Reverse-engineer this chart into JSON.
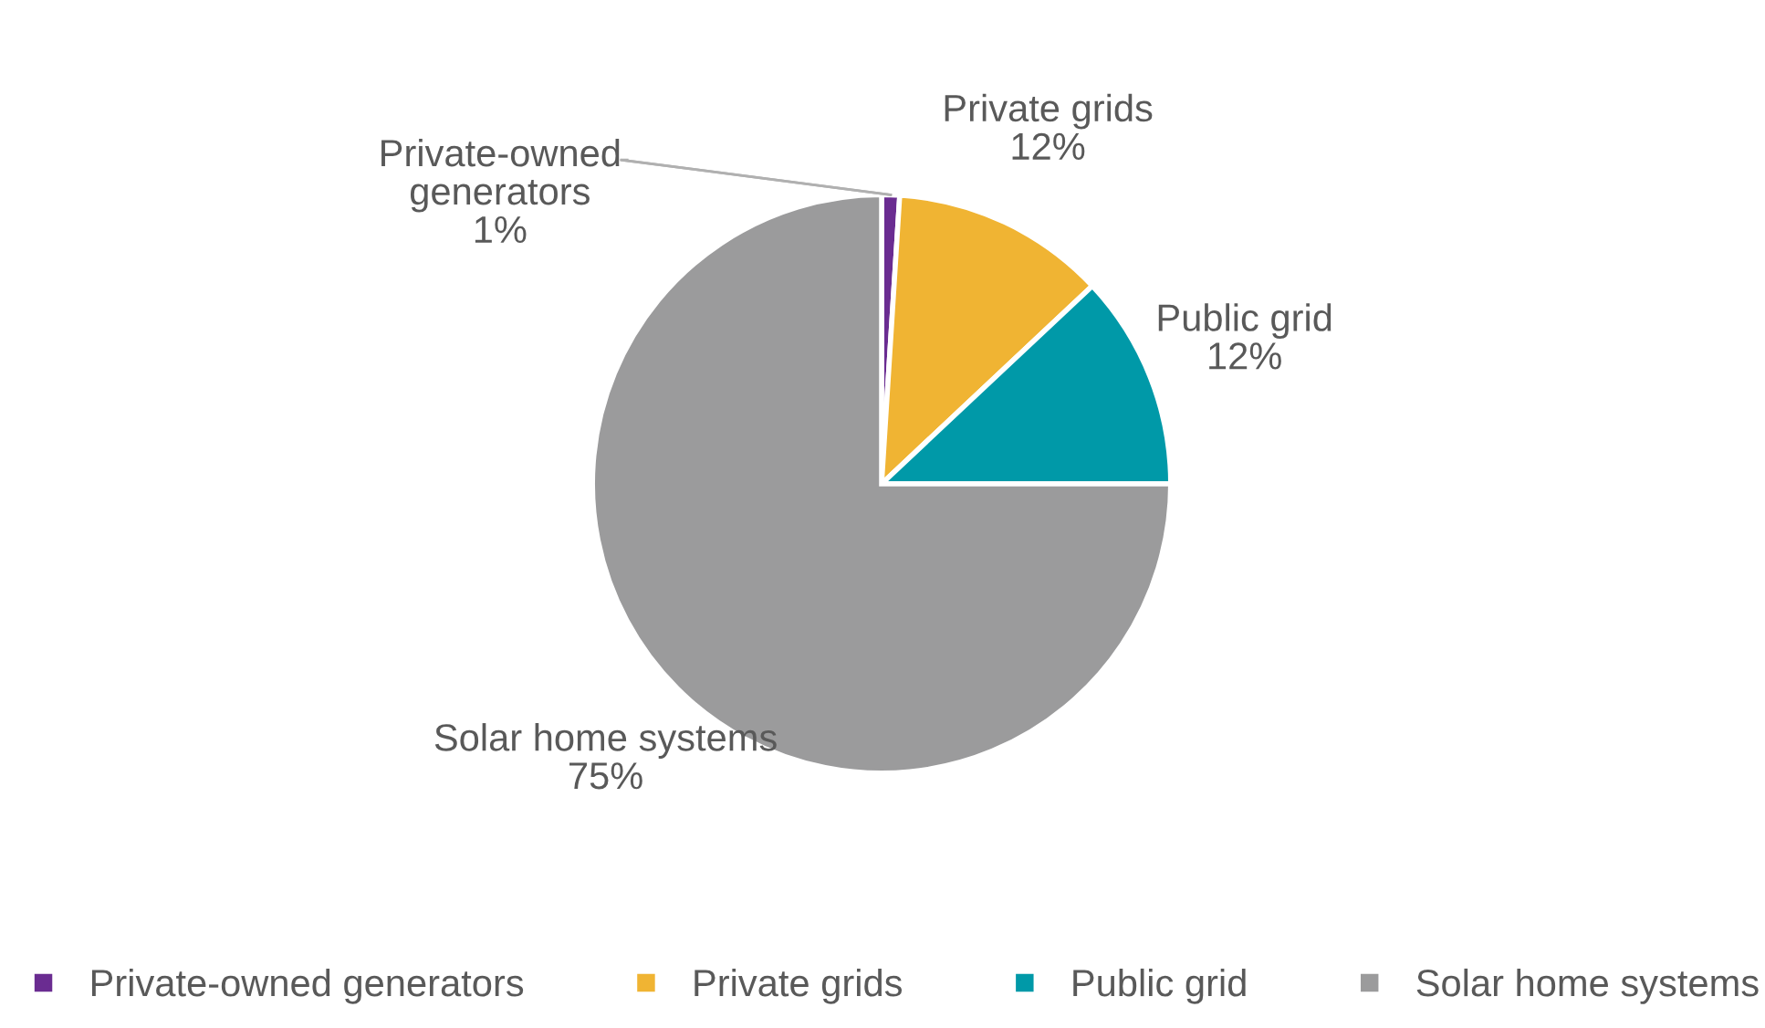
{
  "chart_data": {
    "type": "pie",
    "categories": [
      "Private-owned generators",
      "Private grids",
      "Public grid",
      "Solar home systems"
    ],
    "values": [
      1,
      12,
      12,
      75
    ],
    "colors": [
      "#6a2c91",
      "#f0b433",
      "#0099a8",
      "#9b9b9c"
    ],
    "value_labels": [
      "1%",
      "12%",
      "12%",
      "75%"
    ],
    "legend": "bottom"
  }
}
